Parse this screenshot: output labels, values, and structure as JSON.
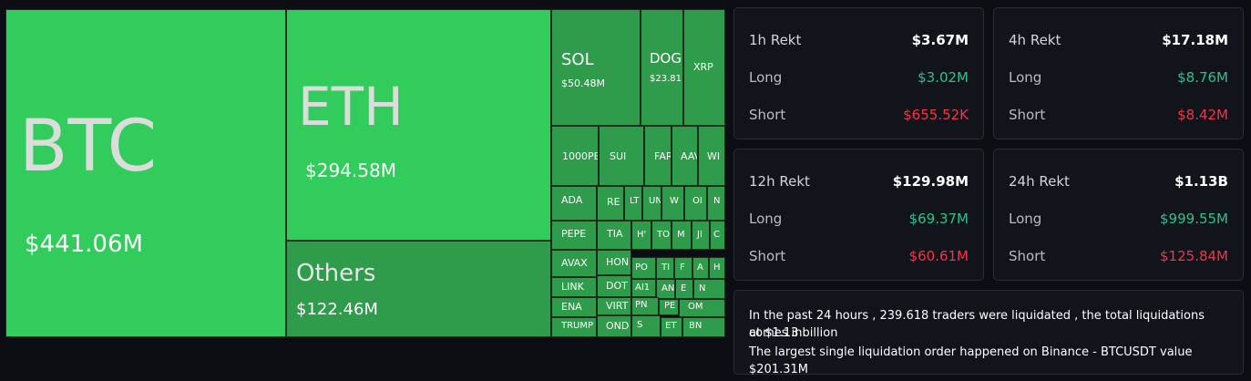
{
  "colors": {
    "page_bg": "#0d0e13",
    "card_bg": "#12141c",
    "card_border": "#2a2d38",
    "long": "#2fc08a",
    "short": "#f23645",
    "tile_bright": "#31cc5b",
    "tile_mid": "#2e9c4b"
  },
  "treemap": [
    {
      "symbol": "BTC",
      "value": "$441.06M"
    },
    {
      "symbol": "ETH",
      "value": "$294.58M"
    },
    {
      "symbol": "Others",
      "value": "$122.46M"
    },
    {
      "symbol": "SOL",
      "value": "$50.48M"
    },
    {
      "symbol": "DOG",
      "value": "$23.81"
    },
    {
      "symbol": "XRP",
      "value": ""
    },
    {
      "symbol": "1000PE",
      "value": ""
    },
    {
      "symbol": "SUI",
      "value": ""
    },
    {
      "symbol": "FAR",
      "value": ""
    },
    {
      "symbol": "AAV",
      "value": ""
    },
    {
      "symbol": "WI",
      "value": ""
    },
    {
      "symbol": "ADA",
      "value": ""
    },
    {
      "symbol": "RE",
      "value": ""
    },
    {
      "symbol": "LT",
      "value": ""
    },
    {
      "symbol": "UN",
      "value": ""
    },
    {
      "symbol": "W",
      "value": ""
    },
    {
      "symbol": "OI",
      "value": ""
    },
    {
      "symbol": "N",
      "value": ""
    },
    {
      "symbol": "PEPE",
      "value": ""
    },
    {
      "symbol": "TIA",
      "value": ""
    },
    {
      "symbol": "H'",
      "value": ""
    },
    {
      "symbol": "TO",
      "value": ""
    },
    {
      "symbol": "M",
      "value": ""
    },
    {
      "symbol": "JI",
      "value": ""
    },
    {
      "symbol": "C",
      "value": ""
    },
    {
      "symbol": "AVAX",
      "value": ""
    },
    {
      "symbol": "HON",
      "value": ""
    },
    {
      "symbol": "PO",
      "value": ""
    },
    {
      "symbol": "TI",
      "value": ""
    },
    {
      "symbol": "F",
      "value": ""
    },
    {
      "symbol": "A",
      "value": ""
    },
    {
      "symbol": "H",
      "value": ""
    },
    {
      "symbol": "LINK",
      "value": ""
    },
    {
      "symbol": "DOT",
      "value": ""
    },
    {
      "symbol": "AI1",
      "value": ""
    },
    {
      "symbol": "AN",
      "value": ""
    },
    {
      "symbol": "E",
      "value": ""
    },
    {
      "symbol": "N",
      "value": ""
    },
    {
      "symbol": "ENA",
      "value": ""
    },
    {
      "symbol": "VIRT",
      "value": ""
    },
    {
      "symbol": "PN",
      "value": ""
    },
    {
      "symbol": "PE",
      "value": ""
    },
    {
      "symbol": "OM",
      "value": ""
    },
    {
      "symbol": "TRUMP",
      "value": ""
    },
    {
      "symbol": "OND",
      "value": ""
    },
    {
      "symbol": "S",
      "value": ""
    },
    {
      "symbol": "ET",
      "value": ""
    },
    {
      "symbol": "BN",
      "value": ""
    }
  ],
  "cards": [
    {
      "title": "1h Rekt",
      "total": "$3.67M",
      "long_label": "Long",
      "long": "$3.02M",
      "short_label": "Short",
      "short": "$655.52K"
    },
    {
      "title": "4h Rekt",
      "total": "$17.18M",
      "long_label": "Long",
      "long": "$8.76M",
      "short_label": "Short",
      "short": "$8.42M"
    },
    {
      "title": "12h Rekt",
      "total": "$129.98M",
      "long_label": "Long",
      "long": "$69.37M",
      "short_label": "Short",
      "short": "$60.61M"
    },
    {
      "title": "24h Rekt",
      "total": "$1.13B",
      "long_label": "Long",
      "long": "$999.55M",
      "short_label": "Short",
      "short": "$125.84M"
    }
  ],
  "summary": {
    "line1": "In the past 24 hours , 239.618 traders were liquidated , the total liquidations comes in",
    "line2": "at $1.13 billion",
    "line3": "The largest single liquidation order happened on Binance - BTCUSDT value $201.31M"
  }
}
